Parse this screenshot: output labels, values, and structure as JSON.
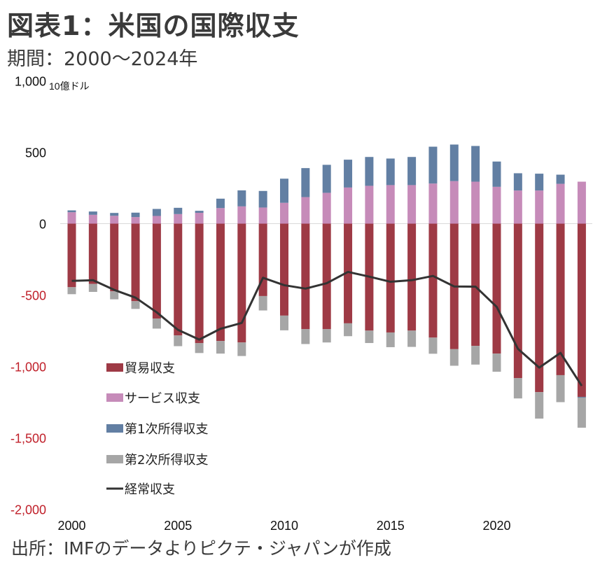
{
  "header": {
    "title": "図表1：米国の国際収支",
    "subtitle": "期間：2000～2024年"
  },
  "footer": {
    "source": "出所：IMFのデータよりピクテ・ジャパンが作成"
  },
  "chart_data": {
    "type": "bar",
    "stacked": true,
    "title": "図表1：米国の国際収支",
    "subtitle": "期間：2000～2024年",
    "unit_label": "10億ドル",
    "xlabel": "",
    "ylabel": "10億ドル",
    "ylim": [
      -2000,
      1000
    ],
    "yticks": [
      1000,
      500,
      0,
      -500,
      -1000,
      -1500,
      -2000
    ],
    "ytick_labels": [
      "1,000",
      "500",
      "0",
      "-500",
      "-1,000",
      "-1,500",
      "-2,000"
    ],
    "negative_tick_color": "#c0202a",
    "positive_tick_color": "#111111",
    "x": [
      2000,
      2001,
      2002,
      2003,
      2004,
      2005,
      2006,
      2007,
      2008,
      2009,
      2010,
      2011,
      2012,
      2013,
      2014,
      2015,
      2016,
      2017,
      2018,
      2019,
      2020,
      2021,
      2022,
      2023,
      2024
    ],
    "xtick_labels": [
      "2000",
      "2005",
      "2010",
      "2015",
      "2020"
    ],
    "xticks": [
      2000,
      2005,
      2010,
      2015,
      2020
    ],
    "grid": false,
    "legend_position": "bottom-left (inside plot)",
    "series": [
      {
        "name": "貿易収支",
        "kind": "bar",
        "color": "#9e3a45",
        "values": [
          -445,
          -422,
          -474,
          -543,
          -665,
          -783,
          -837,
          -822,
          -832,
          -507,
          -644,
          -739,
          -739,
          -698,
          -749,
          -762,
          -749,
          -798,
          -879,
          -856,
          -910,
          -1082,
          -1180,
          -1061,
          -1213
        ]
      },
      {
        "name": "サービス収支",
        "kind": "bar",
        "color": "#c68bb9",
        "values": [
          80,
          62,
          55,
          46,
          54,
          67,
          76,
          109,
          121,
          113,
          146,
          186,
          216,
          253,
          265,
          270,
          270,
          281,
          298,
          294,
          258,
          232,
          232,
          279,
          294
        ]
      },
      {
        "name": "第1次所得収支",
        "kind": "bar",
        "color": "#627fa3",
        "values": [
          13,
          23,
          20,
          31,
          49,
          44,
          14,
          66,
          112,
          116,
          169,
          203,
          196,
          195,
          202,
          186,
          197,
          258,
          256,
          250,
          177,
          121,
          118,
          64,
          -5
        ]
      },
      {
        "name": "第2次所得収支",
        "kind": "bar",
        "color": "#a6a6a6",
        "values": [
          -49,
          -56,
          -56,
          -54,
          -70,
          -75,
          -69,
          -88,
          -95,
          -101,
          -103,
          -104,
          -93,
          -90,
          -87,
          -103,
          -114,
          -113,
          -116,
          -131,
          -127,
          -142,
          -185,
          -189,
          -211
        ]
      },
      {
        "name": "経常収支",
        "kind": "line",
        "color": "#333333",
        "values": [
          -401,
          -396,
          -464,
          -518,
          -621,
          -744,
          -812,
          -736,
          -695,
          -379,
          -431,
          -455,
          -417,
          -338,
          -371,
          -407,
          -396,
          -366,
          -440,
          -441,
          -583,
          -877,
          -1008,
          -905,
          -1136
        ]
      }
    ]
  }
}
